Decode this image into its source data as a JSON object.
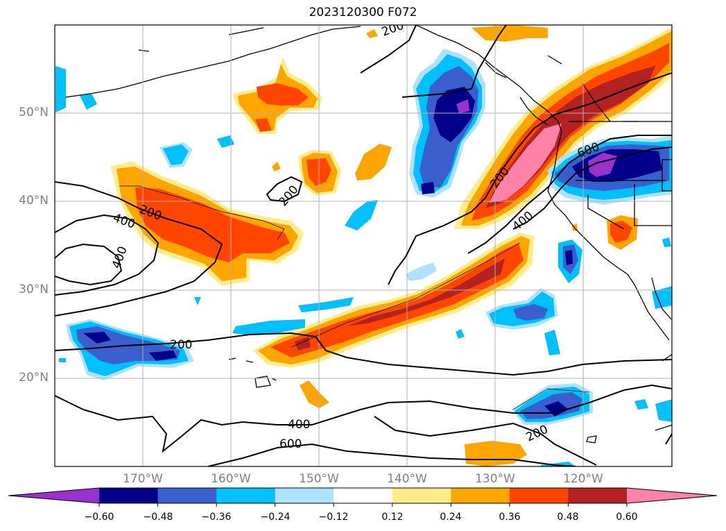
{
  "title": "2023120300 F072",
  "map": {
    "lat_labels": [
      "50°N",
      "40°N",
      "30°N",
      "20°N"
    ],
    "lon_labels": [
      "170°W",
      "160°W",
      "150°W",
      "140°W",
      "130°W",
      "120°W"
    ],
    "contour_labels": [
      "200",
      "200",
      "200",
      "400",
      "600",
      "200",
      "200",
      "400",
      "200",
      "400",
      "600",
      "400"
    ]
  },
  "colorbar": {
    "tick_labels": [
      "−0.60",
      "−0.48",
      "−0.36",
      "−0.24",
      "−0.12",
      "0.12",
      "0.24",
      "0.36",
      "0.48",
      "0.60"
    ],
    "colors": [
      "#9932CC",
      "#00008B",
      "#3A5FCD",
      "#00BFFF",
      "#B0E2FF",
      "#FFFFFF",
      "#FFEC8B",
      "#FFA500",
      "#FF4500",
      "#B22222",
      "#FF82AB"
    ]
  }
}
